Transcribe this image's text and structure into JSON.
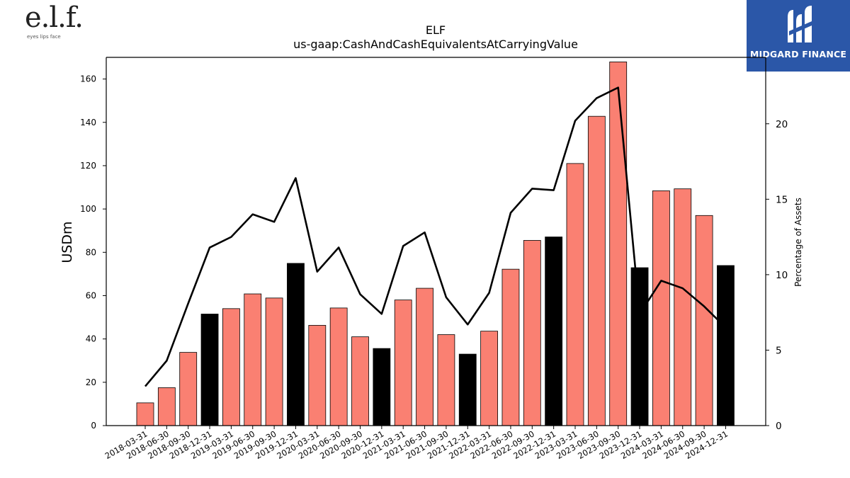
{
  "logos": {
    "left": {
      "mark": "e.l.f.",
      "tagline": "eyes lips face"
    },
    "right": {
      "name": "MIDGARD FINANCE",
      "color": "#2b57a8"
    }
  },
  "chart_data": {
    "type": "bar",
    "title": "ELF",
    "subtitle": "us-gaap:CashAndCashEquivalentsAtCarryingValue",
    "ylabel": "USDm",
    "y2label": "Percentage of Assets",
    "ylim": [
      0,
      170
    ],
    "y2lim": [
      0,
      24.4
    ],
    "yticks": [
      0,
      20,
      40,
      60,
      80,
      100,
      120,
      140,
      160
    ],
    "y2ticks": [
      0,
      5,
      10,
      15,
      20
    ],
    "categories": [
      "2018-03-31",
      "2018-06-30",
      "2018-09-30",
      "2018-12-31",
      "2019-03-31",
      "2019-06-30",
      "2019-09-30",
      "2019-12-31",
      "2020-03-31",
      "2020-06-30",
      "2020-09-30",
      "2020-12-31",
      "2021-03-31",
      "2021-06-30",
      "2021-09-30",
      "2021-12-31",
      "2022-03-31",
      "2022-06-30",
      "2022-09-30",
      "2022-12-31",
      "2023-03-31",
      "2023-06-30",
      "2023-09-30",
      "2023-12-31",
      "2024-03-31",
      "2024-06-30",
      "2024-09-30",
      "2024-12-31"
    ],
    "series": [
      {
        "type": "bar",
        "values": [
          10.5,
          17.5,
          33.8,
          51.5,
          54,
          60.8,
          58.9,
          74.9,
          46.3,
          54.3,
          41,
          35.6,
          58,
          63.4,
          42,
          33,
          43.6,
          72.2,
          85.5,
          87.1,
          121,
          142.8,
          167.9,
          72.9,
          108.4,
          109.3,
          97,
          73.9
        ],
        "colors": {
          "quarter": "#fa8072",
          "year_end": "#000000"
        }
      },
      {
        "type": "line",
        "values": [
          2.6,
          4.3,
          8.1,
          11.8,
          12.5,
          14.0,
          13.5,
          16.4,
          10.2,
          11.8,
          8.7,
          7.4,
          11.9,
          12.8,
          8.5,
          6.7,
          8.8,
          14.1,
          15.7,
          15.6,
          20.2,
          21.7,
          22.4,
          7.4,
          9.6,
          9.1,
          7.9,
          6.5
        ],
        "color": "#000000"
      }
    ],
    "grid": false
  }
}
